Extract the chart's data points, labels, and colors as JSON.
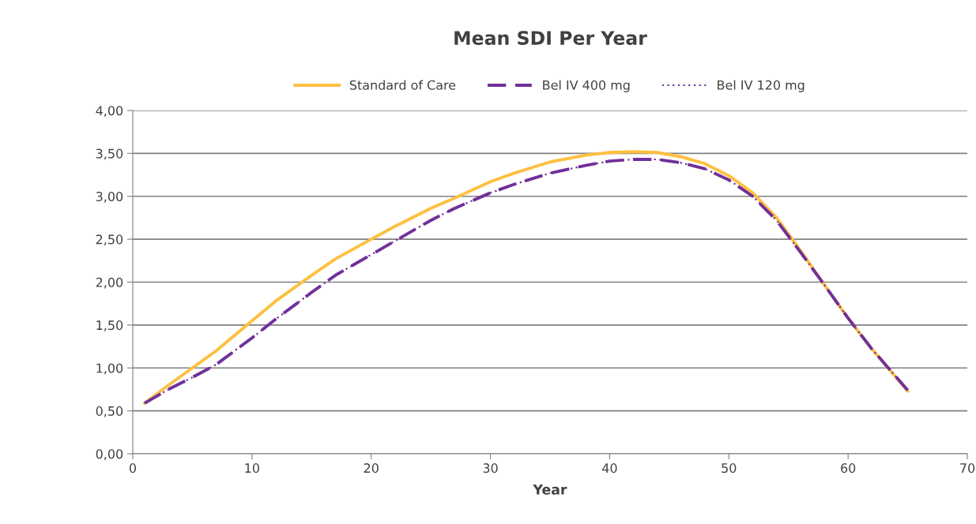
{
  "chart_data": {
    "type": "line",
    "title": "Mean SDI Per Year",
    "xlabel": "Year",
    "x": [
      1,
      3,
      5,
      7,
      10,
      12,
      15,
      17,
      20,
      22,
      25,
      27,
      30,
      32,
      35,
      38,
      40,
      42,
      44,
      46,
      48,
      50,
      52,
      54,
      56,
      58,
      60,
      62,
      65
    ],
    "series": [
      {
        "name": "Standard of Care",
        "color": "#fdc040",
        "line_style": "solid",
        "values": [
          0.59,
          0.8,
          1.0,
          1.2,
          1.55,
          1.78,
          2.08,
          2.27,
          2.5,
          2.65,
          2.86,
          2.98,
          3.17,
          3.27,
          3.4,
          3.48,
          3.51,
          3.52,
          3.51,
          3.46,
          3.38,
          3.24,
          3.04,
          2.75,
          2.37,
          1.97,
          1.58,
          1.22,
          0.73
        ]
      },
      {
        "name": "Bel IV 400 mg",
        "color": "#70309a",
        "line_style": "dashed",
        "values": [
          0.59,
          0.75,
          0.89,
          1.04,
          1.35,
          1.57,
          1.88,
          2.08,
          2.32,
          2.48,
          2.72,
          2.86,
          3.04,
          3.14,
          3.27,
          3.36,
          3.41,
          3.43,
          3.43,
          3.39,
          3.32,
          3.19,
          3.0,
          2.72,
          2.35,
          1.97,
          1.58,
          1.22,
          0.74
        ]
      },
      {
        "name": "Bel IV 120 mg",
        "color": "#70309a",
        "line_style": "dotted",
        "values": [
          0.59,
          0.75,
          0.89,
          1.04,
          1.35,
          1.57,
          1.88,
          2.08,
          2.32,
          2.48,
          2.72,
          2.86,
          3.04,
          3.14,
          3.27,
          3.36,
          3.41,
          3.43,
          3.43,
          3.39,
          3.32,
          3.19,
          3.0,
          2.72,
          2.35,
          1.97,
          1.58,
          1.22,
          0.74
        ]
      }
    ],
    "xlim": [
      0,
      70
    ],
    "xticks": [
      0,
      10,
      20,
      30,
      40,
      50,
      60,
      70
    ],
    "ylim": [
      0,
      4
    ],
    "yticks": [
      {
        "value": 0,
        "label": "0,00"
      },
      {
        "value": 0.5,
        "label": "0,50"
      },
      {
        "value": 1,
        "label": "1,00"
      },
      {
        "value": 1.5,
        "label": "1,50"
      },
      {
        "value": 2,
        "label": "2,00"
      },
      {
        "value": 2.5,
        "label": "2,50"
      },
      {
        "value": 3,
        "label": "3,00"
      },
      {
        "value": 3.5,
        "label": "3,50"
      },
      {
        "value": 4,
        "label": "4,00"
      }
    ],
    "grid": "y",
    "legend": "top",
    "marker": "none"
  }
}
